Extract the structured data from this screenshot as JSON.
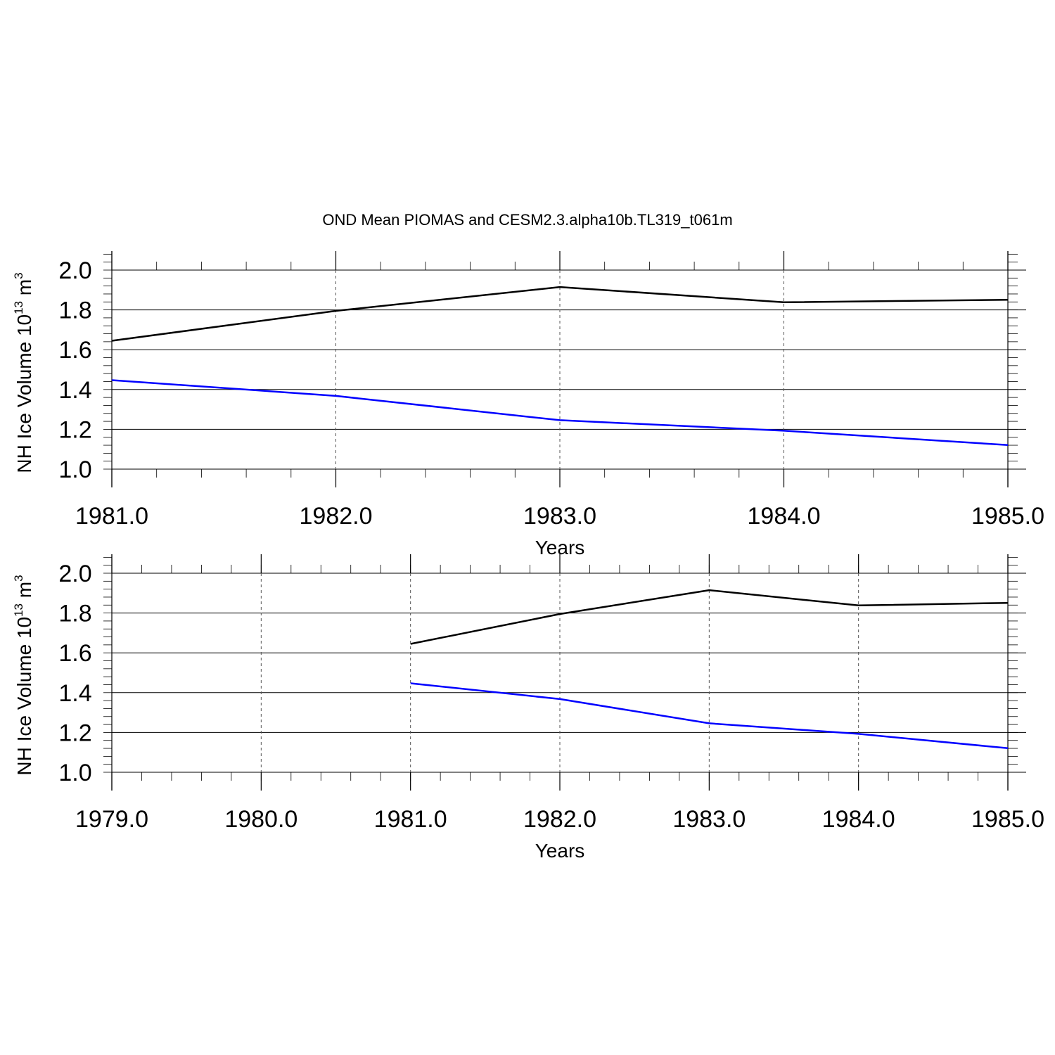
{
  "figure": {
    "title": "OND Mean PIOMAS and CESM2.3.alpha10b.TL319_t061m"
  },
  "chart_data": [
    {
      "type": "line",
      "xlabel": "Years",
      "ylabel": {
        "text": "NH Ice Volume 10",
        "sup1": "13",
        "mid": " m",
        "sup2": "3"
      },
      "xlim": [
        1981,
        1985
      ],
      "ylim": [
        1.0,
        2.1
      ],
      "x_ticks": [
        "1981.0",
        "1982.0",
        "1983.0",
        "1984.0",
        "1985.0"
      ],
      "y_ticks": [
        "1.0",
        "1.2",
        "1.4",
        "1.6",
        "1.8",
        "2.0"
      ],
      "grid": "vertical dashed at major x ticks",
      "series": [
        {
          "color": "#000000",
          "x": [
            1981,
            1982,
            1983,
            1984,
            1985
          ],
          "values": [
            1.645,
            1.795,
            1.915,
            1.838,
            1.851
          ]
        },
        {
          "color": "#0000ff",
          "x": [
            1981,
            1982,
            1983,
            1984,
            1985
          ],
          "values": [
            1.447,
            1.368,
            1.246,
            1.193,
            1.121
          ]
        }
      ]
    },
    {
      "type": "line",
      "xlabel": "Years",
      "ylabel": {
        "text": "NH Ice Volume 10",
        "sup1": "13",
        "mid": " m",
        "sup2": "3"
      },
      "xlim": [
        1979,
        1985
      ],
      "ylim": [
        1.0,
        2.1
      ],
      "x_ticks": [
        "1979.0",
        "1980.0",
        "1981.0",
        "1982.0",
        "1983.0",
        "1984.0",
        "1985.0"
      ],
      "y_ticks": [
        "1.0",
        "1.2",
        "1.4",
        "1.6",
        "1.8",
        "2.0"
      ],
      "grid": "vertical dashed at major x ticks",
      "series": [
        {
          "color": "#000000",
          "x": [
            1981,
            1982,
            1983,
            1984,
            1985
          ],
          "values": [
            1.645,
            1.795,
            1.915,
            1.838,
            1.851
          ]
        },
        {
          "color": "#0000ff",
          "x": [
            1981,
            1982,
            1983,
            1984,
            1985
          ],
          "values": [
            1.447,
            1.368,
            1.246,
            1.193,
            1.121
          ]
        }
      ]
    }
  ]
}
